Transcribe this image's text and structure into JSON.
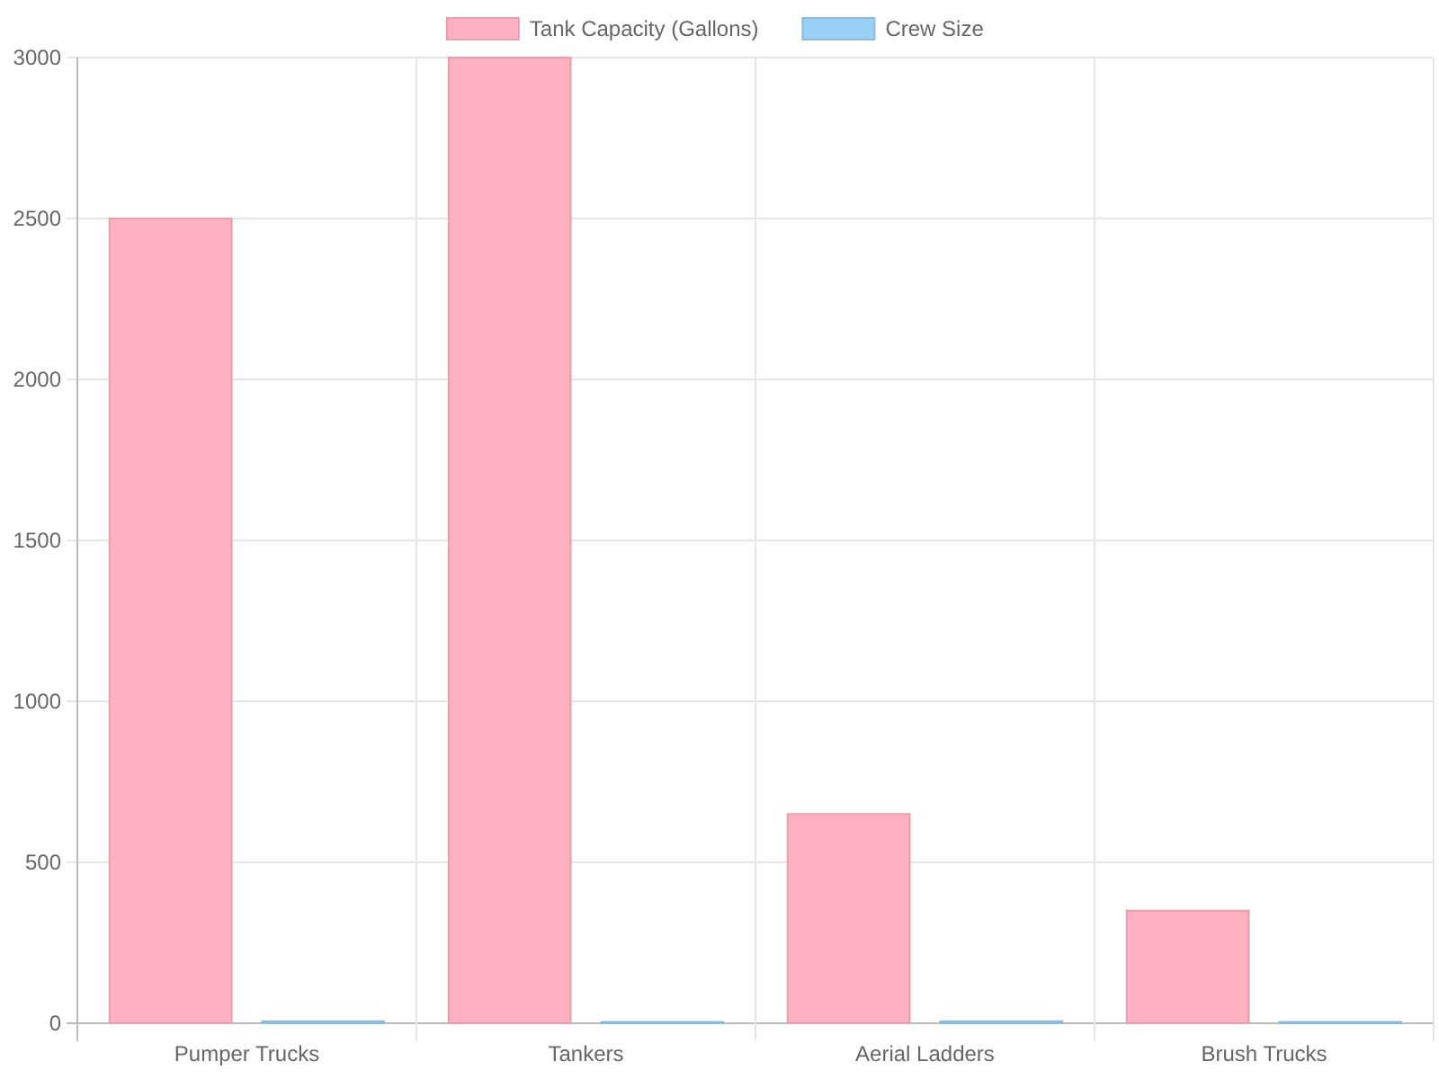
{
  "chart_data": {
    "type": "bar",
    "categories": [
      "Pumper Trucks",
      "Tankers",
      "Aerial Ladders",
      "Brush Trucks"
    ],
    "series": [
      {
        "name": "Tank Capacity (Gallons)",
        "color": "#ffb1c1",
        "values": [
          2500,
          3000,
          650,
          350
        ]
      },
      {
        "name": "Crew Size",
        "color": "#9ad0f5",
        "values": [
          6,
          4,
          6,
          4
        ]
      }
    ],
    "ylim": [
      0,
      3000
    ],
    "yticks": [
      0,
      500,
      1000,
      1500,
      2000,
      2500,
      3000
    ],
    "grid": true,
    "legend": "top"
  }
}
